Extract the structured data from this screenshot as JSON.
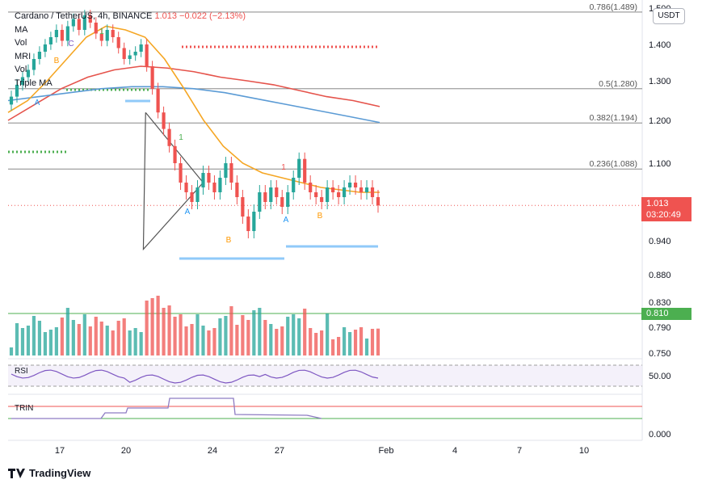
{
  "header": {
    "symbol": "Cardano / TetherUS, 4h, BINANCE",
    "last": "1.013",
    "change": "−0.022 (−2.13%)"
  },
  "legend": [
    "MA",
    "Vol",
    "MRI",
    "Vol",
    "Triple MA"
  ],
  "price_scale": {
    "currency_button": "USDT",
    "current_price_label": "1.013",
    "countdown_label": "03:20:49",
    "volume_marker_label": "0.810"
  },
  "footer": {
    "brand": "TradingView"
  },
  "colors": {
    "up": "#26a69a",
    "down": "#ef5350",
    "ma_orange": "#f5a623",
    "ma_red": "#e5534b",
    "ma_blue": "#5b9bd5",
    "rsi": "#7e57c2",
    "trin": "#8e7cc3"
  },
  "chart_data": {
    "type": "candlestick",
    "symbol": "ADAUSDT",
    "timeframe": "4h",
    "x_ticks": [
      "17",
      "20",
      "24",
      "27",
      "Feb",
      "4",
      "7",
      "10"
    ],
    "y_ticks": [
      "1.500",
      "1.400",
      "1.300",
      "1.200",
      "1.100",
      "0.940",
      "0.880",
      "0.830",
      "0.790",
      "0.750"
    ],
    "fib_levels": [
      {
        "label": "0.786(1.489)",
        "value": 1.489
      },
      {
        "label": "0.5(1.280)",
        "value": 1.28
      },
      {
        "label": "0.382(1.194)",
        "value": 1.194
      },
      {
        "label": "0.236(1.088)",
        "value": 1.088
      }
    ],
    "candles_close": [
      1.26,
      1.29,
      1.31,
      1.33,
      1.36,
      1.38,
      1.4,
      1.42,
      1.44,
      1.41,
      1.45,
      1.47,
      1.44,
      1.48,
      1.46,
      1.43,
      1.41,
      1.44,
      1.42,
      1.39,
      1.36,
      1.37,
      1.38,
      1.4,
      1.34,
      1.28,
      1.22,
      1.18,
      1.14,
      1.1,
      1.06,
      1.04,
      1.02,
      1.05,
      1.08,
      1.06,
      1.04,
      1.07,
      1.1,
      1.06,
      1.03,
      0.99,
      0.96,
      1.0,
      1.04,
      1.02,
      1.05,
      1.03,
      1.01,
      1.04,
      1.07,
      1.11,
      1.06,
      1.04,
      1.03,
      1.02,
      1.05,
      1.04,
      1.03,
      1.05,
      1.06,
      1.05,
      1.04,
      1.05,
      1.03,
      1.013
    ],
    "ma_orange": [
      1.22,
      1.25,
      1.3,
      1.36,
      1.42,
      1.45,
      1.44,
      1.42,
      1.36,
      1.28,
      1.2,
      1.14,
      1.1,
      1.08,
      1.07,
      1.06,
      1.05,
      1.045,
      1.04,
      1.04
    ],
    "ma_red": [
      1.2,
      1.24,
      1.28,
      1.31,
      1.33,
      1.34,
      1.335,
      1.325,
      1.31,
      1.3,
      1.29,
      1.275,
      1.26,
      1.25,
      1.235
    ],
    "ma_blue": [
      1.25,
      1.26,
      1.27,
      1.28,
      1.285,
      1.285,
      1.28,
      1.27,
      1.255,
      1.24,
      1.225,
      1.21,
      1.195
    ],
    "triangle": [
      {
        "t": 23.8,
        "price": 1.22
      },
      {
        "t": 34.0,
        "price": 1.06
      },
      {
        "t": 23.4,
        "price": 0.925
      }
    ],
    "annotations": [
      "A",
      "B",
      "C",
      "1",
      "A",
      "B",
      "A",
      "B",
      "1",
      "1"
    ],
    "rsi": {
      "label": "RSI",
      "level_label": "50.00"
    },
    "trin": {
      "label": "TRIN",
      "zero_label": "0.000"
    }
  }
}
